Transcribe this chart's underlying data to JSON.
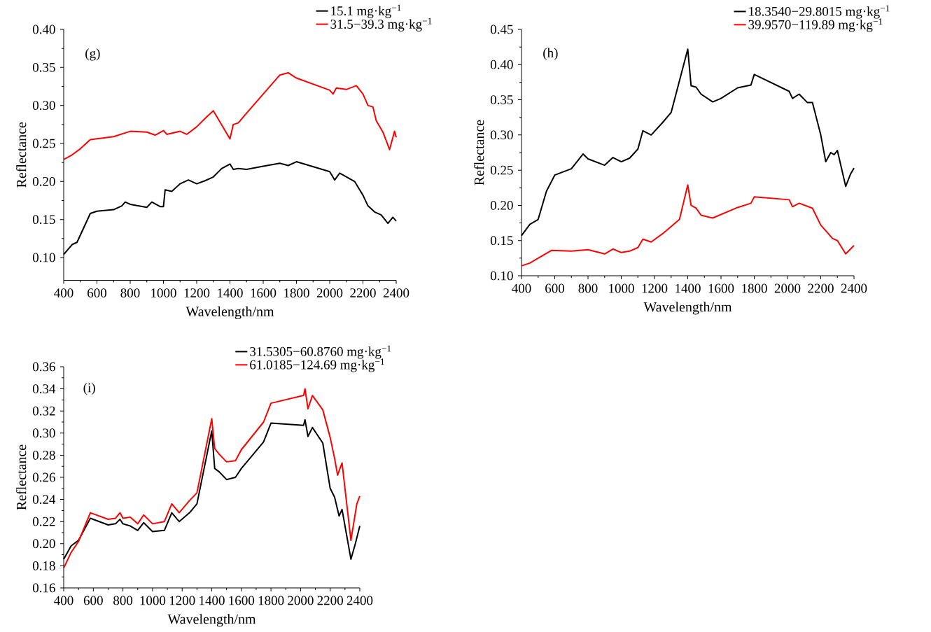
{
  "chart_data": [
    {
      "type": "line",
      "xlabel": "Wavelength/nm",
      "ylabel": "Reflectance",
      "annotations": [
        "(g)"
      ],
      "legend": "top right",
      "xlim": [
        400,
        2400
      ],
      "xticks": [
        400,
        600,
        800,
        1000,
        1200,
        1400,
        1600,
        1800,
        2000,
        2200,
        2400
      ],
      "ylim": [
        0.07,
        0.4
      ],
      "yticks": [
        {
          "value": 0.1,
          "label": "0.10"
        },
        {
          "value": 0.15,
          "label": "0.15"
        },
        {
          "value": 0.2,
          "label": "0.20"
        },
        {
          "value": 0.25,
          "label": "0.25"
        },
        {
          "value": 0.3,
          "label": "0.30"
        },
        {
          "value": 0.35,
          "label": "0.35"
        },
        {
          "value": 0.4,
          "label": "0.40"
        }
      ],
      "series": [
        {
          "name": "15.1 mg·kg$^{−1}$",
          "color": "#000000",
          "x": [
            400,
            450,
            480,
            560,
            600,
            700,
            750,
            770,
            800,
            900,
            930,
            980,
            1000,
            1010,
            1050,
            1100,
            1150,
            1200,
            1250,
            1300,
            1350,
            1400,
            1420,
            1450,
            1500,
            1600,
            1700,
            1750,
            1800,
            2000,
            2030,
            2060,
            2150,
            2200,
            2230,
            2270,
            2310,
            2350,
            2380,
            2400
          ],
          "values": [
            0.104,
            0.117,
            0.12,
            0.158,
            0.161,
            0.163,
            0.168,
            0.173,
            0.17,
            0.166,
            0.173,
            0.167,
            0.167,
            0.189,
            0.187,
            0.197,
            0.202,
            0.197,
            0.201,
            0.206,
            0.217,
            0.223,
            0.216,
            0.217,
            0.216,
            0.22,
            0.224,
            0.221,
            0.226,
            0.213,
            0.202,
            0.211,
            0.2,
            0.182,
            0.168,
            0.16,
            0.156,
            0.145,
            0.153,
            0.148
          ]
        },
        {
          "name": "31.5−39.3 mg·kg$^{−1}$",
          "color": "#ff0000",
          "x": [
            400,
            450,
            500,
            560,
            700,
            800,
            900,
            950,
            1000,
            1020,
            1100,
            1140,
            1200,
            1260,
            1300,
            1400,
            1420,
            1450,
            1500,
            1600,
            1700,
            1750,
            1800,
            2000,
            2020,
            2040,
            2100,
            2160,
            2200,
            2230,
            2260,
            2280,
            2320,
            2360,
            2390,
            2400
          ],
          "values": [
            0.229,
            0.235,
            0.243,
            0.255,
            0.259,
            0.266,
            0.265,
            0.261,
            0.267,
            0.262,
            0.266,
            0.262,
            0.272,
            0.285,
            0.293,
            0.256,
            0.275,
            0.277,
            0.29,
            0.315,
            0.34,
            0.343,
            0.336,
            0.32,
            0.315,
            0.323,
            0.321,
            0.326,
            0.315,
            0.3,
            0.298,
            0.28,
            0.265,
            0.242,
            0.266,
            0.258
          ]
        }
      ]
    },
    {
      "type": "line",
      "xlabel": "Wavelength/nm",
      "ylabel": "Reflectance",
      "annotations": [
        "(h)"
      ],
      "legend": "top right",
      "xlim": [
        400,
        2400
      ],
      "xticks": [
        400,
        600,
        800,
        1000,
        1200,
        1400,
        1600,
        1800,
        2000,
        2200,
        2400
      ],
      "ylim": [
        0.1,
        0.45
      ],
      "yticks": [
        {
          "value": 0.1,
          "label": "0.10"
        },
        {
          "value": 0.15,
          "label": "0.15"
        },
        {
          "value": 0.2,
          "label": "0.20"
        },
        {
          "value": 0.25,
          "label": "0.25"
        },
        {
          "value": 0.3,
          "label": "0.30"
        },
        {
          "value": 0.35,
          "label": "0.35"
        },
        {
          "value": 0.4,
          "label": "0.40"
        },
        {
          "value": 0.45,
          "label": "0.45"
        }
      ],
      "series": [
        {
          "name": "18.3540−29.8015 mg·kg$^{−1}$",
          "color": "#000000",
          "x": [
            400,
            450,
            500,
            550,
            600,
            700,
            750,
            770,
            800,
            900,
            950,
            1000,
            1050,
            1100,
            1130,
            1180,
            1250,
            1300,
            1400,
            1420,
            1450,
            1480,
            1550,
            1600,
            1700,
            1780,
            1800,
            2010,
            2030,
            2070,
            2120,
            2150,
            2200,
            2230,
            2260,
            2280,
            2300,
            2350,
            2380,
            2400
          ],
          "values": [
            0.157,
            0.173,
            0.18,
            0.22,
            0.243,
            0.252,
            0.267,
            0.273,
            0.266,
            0.257,
            0.268,
            0.262,
            0.267,
            0.28,
            0.306,
            0.3,
            0.318,
            0.332,
            0.422,
            0.37,
            0.368,
            0.358,
            0.347,
            0.352,
            0.367,
            0.371,
            0.386,
            0.362,
            0.352,
            0.358,
            0.346,
            0.346,
            0.3,
            0.262,
            0.275,
            0.272,
            0.278,
            0.227,
            0.245,
            0.253
          ]
        },
        {
          "name": "39.9570−119.89 mg·kg$^{−1}$",
          "color": "#ff0000",
          "x": [
            400,
            450,
            500,
            580,
            700,
            800,
            900,
            950,
            1000,
            1050,
            1100,
            1130,
            1180,
            1250,
            1350,
            1400,
            1420,
            1450,
            1480,
            1550,
            1700,
            1780,
            1800,
            2010,
            2030,
            2070,
            2150,
            2200,
            2230,
            2270,
            2300,
            2350,
            2400
          ],
          "values": [
            0.114,
            0.118,
            0.125,
            0.136,
            0.135,
            0.137,
            0.131,
            0.138,
            0.133,
            0.135,
            0.14,
            0.152,
            0.148,
            0.16,
            0.18,
            0.229,
            0.2,
            0.196,
            0.186,
            0.182,
            0.197,
            0.203,
            0.212,
            0.208,
            0.198,
            0.203,
            0.196,
            0.172,
            0.164,
            0.153,
            0.15,
            0.131,
            0.143
          ]
        }
      ]
    },
    {
      "type": "line",
      "xlabel": "Wavelength/nm",
      "ylabel": "Reflectance",
      "annotations": [
        "(i)"
      ],
      "legend": "top right",
      "xlim": [
        400,
        2400
      ],
      "xticks": [
        400,
        600,
        800,
        1000,
        1200,
        1400,
        1600,
        1800,
        2000,
        2200,
        2400
      ],
      "ylim": [
        0.16,
        0.36
      ],
      "yticks": [
        {
          "value": 0.16,
          "label": "0.16"
        },
        {
          "value": 0.18,
          "label": "0.18"
        },
        {
          "value": 0.2,
          "label": "0.20"
        },
        {
          "value": 0.22,
          "label": "0.22"
        },
        {
          "value": 0.24,
          "label": "0.24"
        },
        {
          "value": 0.26,
          "label": "0.26"
        },
        {
          "value": 0.28,
          "label": "0.28"
        },
        {
          "value": 0.3,
          "label": "0.30"
        },
        {
          "value": 0.32,
          "label": "0.32"
        },
        {
          "value": 0.34,
          "label": "0.34"
        },
        {
          "value": 0.36,
          "label": "0.36"
        }
      ],
      "series": [
        {
          "name": "31.5305−60.8760 mg·kg$^{−1}$",
          "color": "#000000",
          "x": [
            400,
            450,
            500,
            580,
            700,
            750,
            780,
            800,
            850,
            900,
            940,
            1000,
            1080,
            1130,
            1180,
            1250,
            1300,
            1400,
            1420,
            1450,
            1500,
            1560,
            1600,
            1700,
            1750,
            1800,
            2020,
            2030,
            2050,
            2080,
            2150,
            2200,
            2230,
            2260,
            2280,
            2340,
            2370,
            2400
          ],
          "values": [
            0.186,
            0.198,
            0.203,
            0.223,
            0.217,
            0.218,
            0.222,
            0.218,
            0.216,
            0.212,
            0.219,
            0.211,
            0.212,
            0.228,
            0.22,
            0.228,
            0.236,
            0.302,
            0.268,
            0.265,
            0.258,
            0.26,
            0.268,
            0.284,
            0.292,
            0.309,
            0.307,
            0.312,
            0.297,
            0.305,
            0.291,
            0.25,
            0.242,
            0.225,
            0.231,
            0.186,
            0.2,
            0.216
          ]
        },
        {
          "name": "61.0185−124.69 mg·kg$^{−1}$",
          "color": "#ff0000",
          "x": [
            400,
            450,
            500,
            580,
            700,
            750,
            780,
            800,
            850,
            900,
            940,
            1000,
            1080,
            1130,
            1180,
            1250,
            1300,
            1400,
            1420,
            1450,
            1500,
            1560,
            1600,
            1750,
            1800,
            2020,
            2030,
            2050,
            2080,
            2150,
            2200,
            2230,
            2250,
            2280,
            2340,
            2380,
            2400
          ],
          "values": [
            0.178,
            0.192,
            0.202,
            0.228,
            0.222,
            0.223,
            0.228,
            0.223,
            0.224,
            0.218,
            0.226,
            0.218,
            0.22,
            0.236,
            0.228,
            0.239,
            0.246,
            0.313,
            0.286,
            0.281,
            0.274,
            0.275,
            0.285,
            0.31,
            0.327,
            0.334,
            0.34,
            0.322,
            0.334,
            0.321,
            0.296,
            0.277,
            0.262,
            0.273,
            0.203,
            0.236,
            0.243
          ]
        }
      ]
    }
  ]
}
